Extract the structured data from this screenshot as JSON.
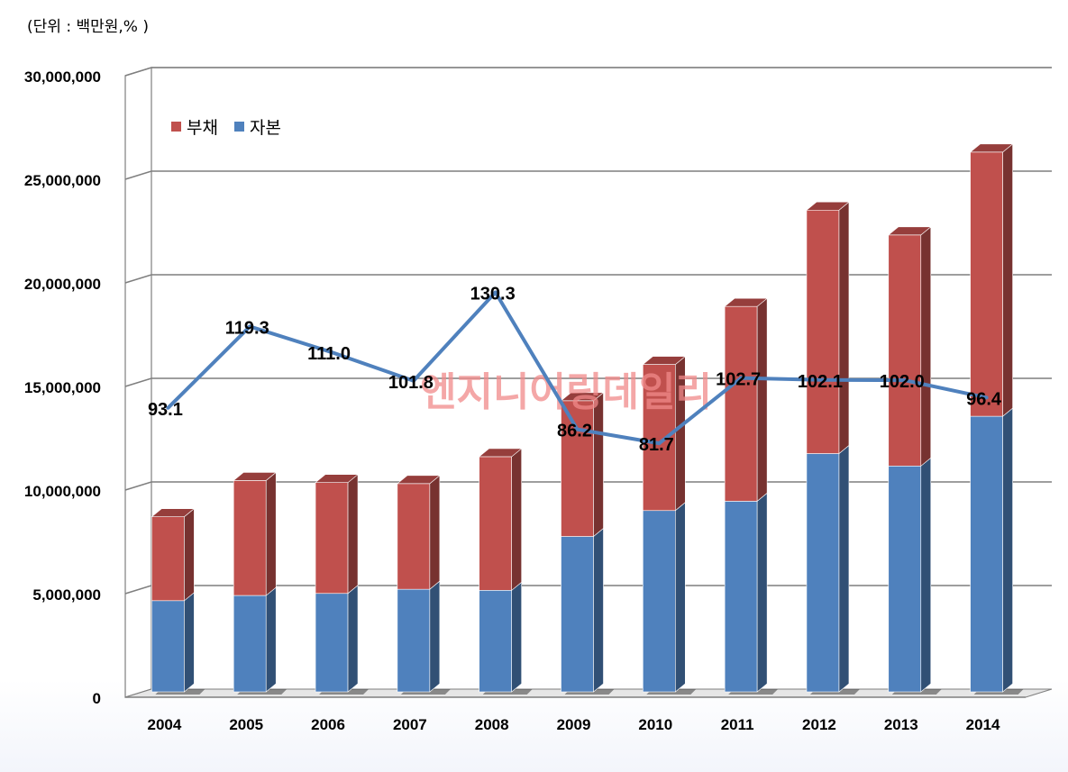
{
  "chart_data": {
    "type": "bar",
    "stacked": true,
    "unit_note": "(단위 : 백만원,% )",
    "watermark": "엔지니어링데일리",
    "categories": [
      "2004",
      "2005",
      "2006",
      "2007",
      "2008",
      "2009",
      "2010",
      "2011",
      "2012",
      "2013",
      "2014"
    ],
    "y_ticks": [
      "0",
      "5,000,000",
      "10,000,000",
      "15,000,000",
      "20,000,000",
      "25,000,000",
      "30,000,000"
    ],
    "ylim": [
      0,
      30000000
    ],
    "grid": true,
    "legend_position": "top-left",
    "series": [
      {
        "name": "자본",
        "color": "#4f81bd",
        "values": [
          4400000,
          4650000,
          4750000,
          4950000,
          4900000,
          7500000,
          8750000,
          9200000,
          11500000,
          10900000,
          13300000
        ]
      },
      {
        "name": "부채",
        "color": "#c0504d",
        "values": [
          4050000,
          5550000,
          5350000,
          5100000,
          6450000,
          6550000,
          7050000,
          9400000,
          11750000,
          11150000,
          12750000
        ]
      }
    ],
    "ratio": {
      "color": "#4f81bd",
      "ylim": [
        0,
        200
      ],
      "values": [
        93.1,
        119.3,
        111.0,
        101.8,
        130.3,
        86.2,
        81.7,
        102.7,
        102.1,
        102.0,
        96.4
      ],
      "labels": [
        "93.1",
        "119.3",
        "111.0",
        "101.8",
        "130.3",
        "86.2",
        "81.7",
        "102.7",
        "102.1",
        "102.0",
        "96.4"
      ]
    },
    "legend": [
      {
        "name": "부채",
        "color": "#c0504d"
      },
      {
        "name": "자본",
        "color": "#4f81bd"
      }
    ]
  }
}
